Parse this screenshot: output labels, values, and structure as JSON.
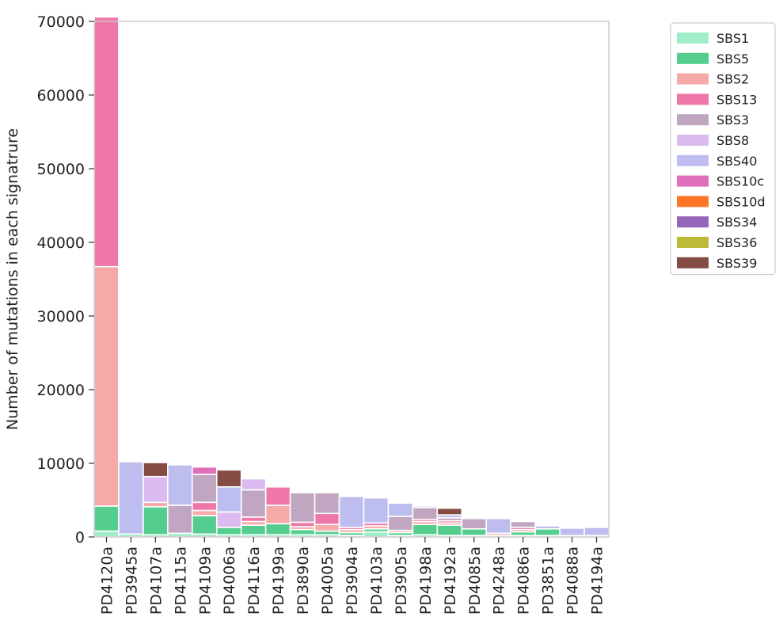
{
  "chart_data": {
    "type": "bar",
    "stacked": true,
    "title": "",
    "xlabel": "",
    "ylabel": "Number of mutations in each signatrure",
    "ylim": [
      0,
      70000
    ],
    "yticks": [
      0,
      10000,
      20000,
      30000,
      40000,
      50000,
      60000,
      70000
    ],
    "categories": [
      "PD4120a",
      "PD3945a",
      "PD4107a",
      "PD4115a",
      "PD4109a",
      "PD4006a",
      "PD4116a",
      "PD4199a",
      "PD3890a",
      "PD4005a",
      "PD3904a",
      "PD4103a",
      "PD3905a",
      "PD4198a",
      "PD4192a",
      "PD4085a",
      "PD4248a",
      "PD4086a",
      "PD3851a",
      "PD4088a",
      "PD4194a"
    ],
    "legend_position": "outside-top-right",
    "series": [
      {
        "name": "SBS1",
        "color": "#a1ecc9",
        "values": [
          800,
          400,
          300,
          500,
          400,
          300,
          300,
          300,
          300,
          300,
          200,
          700,
          200,
          300,
          200,
          200,
          200,
          200,
          200,
          200,
          200
        ]
      },
      {
        "name": "SBS5",
        "color": "#55cd8f",
        "values": [
          3400,
          0,
          3800,
          0,
          2500,
          1000,
          1300,
          1500,
          700,
          500,
          400,
          400,
          400,
          1400,
          1400,
          900,
          0,
          500,
          900,
          0,
          0
        ]
      },
      {
        "name": "SBS2",
        "color": "#f5aaa8",
        "values": [
          32500,
          0,
          600,
          0,
          700,
          0,
          500,
          2500,
          400,
          900,
          400,
          400,
          300,
          400,
          300,
          0,
          300,
          300,
          0,
          0,
          0
        ]
      },
      {
        "name": "SBS13",
        "color": "#ee76a8",
        "values": [
          33900,
          0,
          0,
          0,
          1100,
          0,
          600,
          2500,
          600,
          1500,
          300,
          400,
          0,
          300,
          300,
          0,
          0,
          300,
          0,
          0,
          0
        ]
      },
      {
        "name": "SBS3",
        "color": "#c0a6c1",
        "values": [
          0,
          0,
          0,
          3800,
          3800,
          0,
          3700,
          0,
          4000,
          2800,
          0,
          0,
          1900,
          1600,
          400,
          1400,
          0,
          800,
          0,
          0,
          0
        ]
      },
      {
        "name": "SBS8",
        "color": "#dcbbf0",
        "values": [
          0,
          0,
          3500,
          0,
          0,
          2100,
          1500,
          0,
          0,
          0,
          0,
          0,
          0,
          0,
          0,
          0,
          0,
          0,
          0,
          0,
          0
        ]
      },
      {
        "name": "SBS40",
        "color": "#bdbdf0",
        "values": [
          0,
          9800,
          0,
          5500,
          0,
          3400,
          0,
          0,
          0,
          0,
          4200,
          3400,
          1800,
          200,
          400,
          0,
          2000,
          0,
          400,
          1000,
          1100
        ]
      },
      {
        "name": "SBS10c",
        "color": "#df6fbc",
        "values": [
          0,
          0,
          0,
          0,
          1000,
          0,
          0,
          0,
          0,
          0,
          0,
          0,
          0,
          0,
          0,
          0,
          0,
          0,
          0,
          0,
          0
        ]
      },
      {
        "name": "SBS10d",
        "color": "#ff7427",
        "values": [
          0,
          0,
          0,
          0,
          0,
          0,
          0,
          0,
          0,
          0,
          0,
          0,
          0,
          0,
          0,
          0,
          0,
          0,
          0,
          0,
          0
        ]
      },
      {
        "name": "SBS34",
        "color": "#9465b8",
        "values": [
          0,
          0,
          0,
          0,
          0,
          0,
          0,
          0,
          0,
          0,
          0,
          0,
          0,
          0,
          0,
          0,
          0,
          0,
          0,
          0,
          0
        ]
      },
      {
        "name": "SBS36",
        "color": "#bcbb35",
        "values": [
          0,
          0,
          0,
          0,
          0,
          0,
          0,
          0,
          0,
          0,
          0,
          0,
          0,
          0,
          0,
          0,
          0,
          0,
          0,
          0,
          0
        ]
      },
      {
        "name": "SBS39",
        "color": "#844c42",
        "values": [
          0,
          0,
          1900,
          0,
          0,
          2300,
          0,
          0,
          0,
          0,
          0,
          0,
          0,
          0,
          900,
          0,
          0,
          0,
          0,
          0,
          0
        ]
      }
    ]
  }
}
